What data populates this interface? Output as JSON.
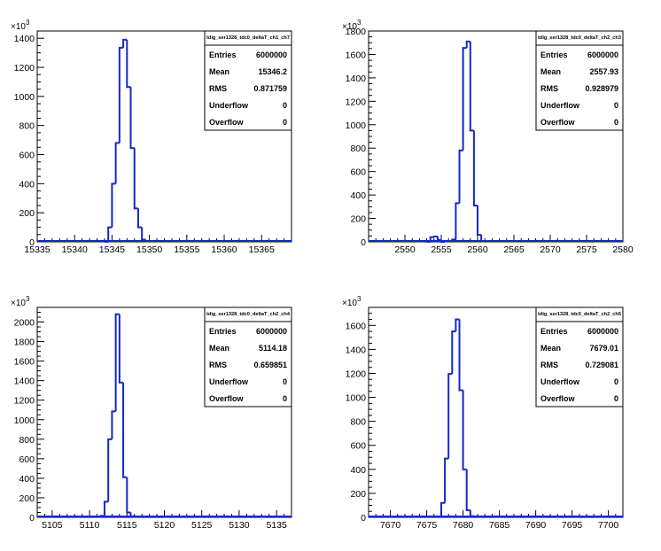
{
  "chart_data": [
    {
      "type": "histogram",
      "title": "tdig_ser1328_tdc0_deltaT_ch1_ch7",
      "exponent_label": "×10",
      "exponent_sup": "3",
      "xlim": [
        15335,
        15369
      ],
      "ylim": [
        0,
        1450
      ],
      "xticks": [
        15335,
        15340,
        15345,
        15350,
        15355,
        15360,
        15365
      ],
      "yticks": [
        0,
        200,
        400,
        600,
        800,
        1000,
        1200,
        1400
      ],
      "bin_width": 0.5,
      "bins": [
        {
          "x": 15344.0,
          "y": 0
        },
        {
          "x": 15344.5,
          "y": 100
        },
        {
          "x": 15345.0,
          "y": 400
        },
        {
          "x": 15345.5,
          "y": 680
        },
        {
          "x": 15346.0,
          "y": 1335
        },
        {
          "x": 15346.5,
          "y": 1390
        },
        {
          "x": 15347.0,
          "y": 1065
        },
        {
          "x": 15347.5,
          "y": 645
        },
        {
          "x": 15348.0,
          "y": 230
        },
        {
          "x": 15348.5,
          "y": 100
        },
        {
          "x": 15349.0,
          "y": 15
        }
      ],
      "stats": [
        {
          "label": "Entries",
          "value": "6000000"
        },
        {
          "label": "Mean",
          "value": "15346.2"
        },
        {
          "label": "RMS",
          "value": "0.871759"
        },
        {
          "label": "Underflow",
          "value": "0"
        },
        {
          "label": "Overflow",
          "value": "0"
        }
      ]
    },
    {
      "type": "histogram",
      "title": "tdig_ser1328_tdc0_deltaT_ch2_ch3",
      "exponent_label": "×10",
      "exponent_sup": "3",
      "xlim": [
        2545,
        2580
      ],
      "ylim": [
        0,
        1800
      ],
      "xticks": [
        2550,
        2555,
        2560,
        2565,
        2570,
        2575,
        2580
      ],
      "yticks": [
        0,
        200,
        400,
        600,
        800,
        1000,
        1200,
        1400,
        1600,
        1800
      ],
      "bin_width": 0.5,
      "bins": [
        {
          "x": 2553.0,
          "y": 0
        },
        {
          "x": 2553.5,
          "y": 40
        },
        {
          "x": 2554.0,
          "y": 45
        },
        {
          "x": 2554.5,
          "y": 15
        },
        {
          "x": 2555.0,
          "y": 0
        },
        {
          "x": 2556.5,
          "y": 20
        },
        {
          "x": 2557.0,
          "y": 330
        },
        {
          "x": 2557.5,
          "y": 780
        },
        {
          "x": 2558.0,
          "y": 1655
        },
        {
          "x": 2558.5,
          "y": 1710
        },
        {
          "x": 2559.0,
          "y": 950
        },
        {
          "x": 2559.5,
          "y": 310
        },
        {
          "x": 2560.0,
          "y": 60
        }
      ],
      "stats": [
        {
          "label": "Entries",
          "value": "6000000"
        },
        {
          "label": "Mean",
          "value": "2557.93"
        },
        {
          "label": "RMS",
          "value": "0.928979"
        },
        {
          "label": "Underflow",
          "value": "0"
        },
        {
          "label": "Overflow",
          "value": "0"
        }
      ]
    },
    {
      "type": "histogram",
      "title": "tdig_ser1328_tdc0_deltaT_ch2_ch4",
      "exponent_label": "×10",
      "exponent_sup": "3",
      "xlim": [
        5103,
        5137
      ],
      "ylim": [
        0,
        2150
      ],
      "xticks": [
        5105,
        5110,
        5115,
        5120,
        5125,
        5130,
        5135
      ],
      "yticks": [
        0,
        200,
        400,
        600,
        800,
        1000,
        1200,
        1400,
        1600,
        1800,
        2000
      ],
      "bin_width": 0.5,
      "bins": [
        {
          "x": 5111.5,
          "y": 15
        },
        {
          "x": 5112.0,
          "y": 160
        },
        {
          "x": 5112.5,
          "y": 800
        },
        {
          "x": 5113.0,
          "y": 1085
        },
        {
          "x": 5113.5,
          "y": 2080
        },
        {
          "x": 5114.0,
          "y": 1380
        },
        {
          "x": 5114.5,
          "y": 410
        },
        {
          "x": 5115.0,
          "y": 50
        },
        {
          "x": 5115.5,
          "y": 10
        }
      ],
      "stats": [
        {
          "label": "Entries",
          "value": "6000000"
        },
        {
          "label": "Mean",
          "value": "5114.18"
        },
        {
          "label": "RMS",
          "value": "0.659851"
        },
        {
          "label": "Underflow",
          "value": "0"
        },
        {
          "label": "Overflow",
          "value": "0"
        }
      ]
    },
    {
      "type": "histogram",
      "title": "tdig_ser1328_tdc0_deltaT_ch2_ch5",
      "exponent_label": "×10",
      "exponent_sup": "3",
      "xlim": [
        7667,
        7702
      ],
      "ylim": [
        0,
        1750
      ],
      "xticks": [
        7670,
        7675,
        7680,
        7685,
        7690,
        7695,
        7700
      ],
      "yticks": [
        0,
        200,
        400,
        600,
        800,
        1000,
        1200,
        1400,
        1600
      ],
      "bin_width": 0.5,
      "bins": [
        {
          "x": 7677.0,
          "y": 120
        },
        {
          "x": 7677.5,
          "y": 490
        },
        {
          "x": 7678.0,
          "y": 1195
        },
        {
          "x": 7678.5,
          "y": 1550
        },
        {
          "x": 7679.0,
          "y": 1650
        },
        {
          "x": 7679.5,
          "y": 1060
        },
        {
          "x": 7680.0,
          "y": 400
        },
        {
          "x": 7680.5,
          "y": 60
        },
        {
          "x": 7681.0,
          "y": 10
        }
      ],
      "stats": [
        {
          "label": "Entries",
          "value": "6000000"
        },
        {
          "label": "Mean",
          "value": "7679.01"
        },
        {
          "label": "RMS",
          "value": "0.729081"
        },
        {
          "label": "Underflow",
          "value": "0"
        },
        {
          "label": "Overflow",
          "value": "0"
        }
      ]
    }
  ],
  "colors": {
    "histogram_line": "#1428c8",
    "axis": "#000000",
    "background": "#ffffff"
  }
}
